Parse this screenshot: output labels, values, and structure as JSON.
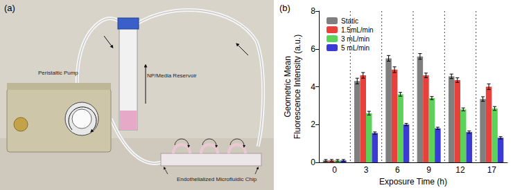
{
  "chart_data": {
    "type": "bar",
    "title": "(b)",
    "x_label": "Exposure Time (h)",
    "y_label": "Geometric Mean\nFluorescence Intensity (a.u.)",
    "categories": [
      "0",
      "3",
      "6",
      "9",
      "12",
      "17"
    ],
    "series": [
      {
        "name": "Static",
        "color": "#7f7f7f",
        "values": [
          0.1,
          4.3,
          5.5,
          5.6,
          4.55,
          3.35
        ],
        "errors": [
          0.05,
          0.15,
          0.15,
          0.15,
          0.12,
          0.12
        ]
      },
      {
        "name": "1.5mL/min",
        "color": "#e8403b",
        "values": [
          0.1,
          4.6,
          4.9,
          4.6,
          4.35,
          4.0
        ],
        "errors": [
          0.05,
          0.15,
          0.15,
          0.12,
          0.12,
          0.15
        ]
      },
      {
        "name": "3 mL/min",
        "color": "#5bd35b",
        "values": [
          0.1,
          2.6,
          3.6,
          3.4,
          2.8,
          2.85
        ],
        "errors": [
          0.05,
          0.1,
          0.1,
          0.08,
          0.08,
          0.1
        ]
      },
      {
        "name": "5 mL/min",
        "color": "#3a3ad4",
        "values": [
          0.1,
          1.55,
          2.0,
          1.8,
          1.6,
          1.3
        ],
        "errors": [
          0.05,
          0.06,
          0.06,
          0.06,
          0.06,
          0.06
        ]
      }
    ],
    "ylim": [
      0,
      8
    ],
    "yticks": [
      0,
      2,
      4,
      6,
      8
    ],
    "grid": false,
    "legend": "upper left"
  },
  "photo": {
    "panel": "(a)",
    "labels": {
      "pump": "Peristaltic Pump",
      "reservoir": "NP/Media Reservoir",
      "chip": "Endothelialized Microfluidic Chip"
    }
  }
}
